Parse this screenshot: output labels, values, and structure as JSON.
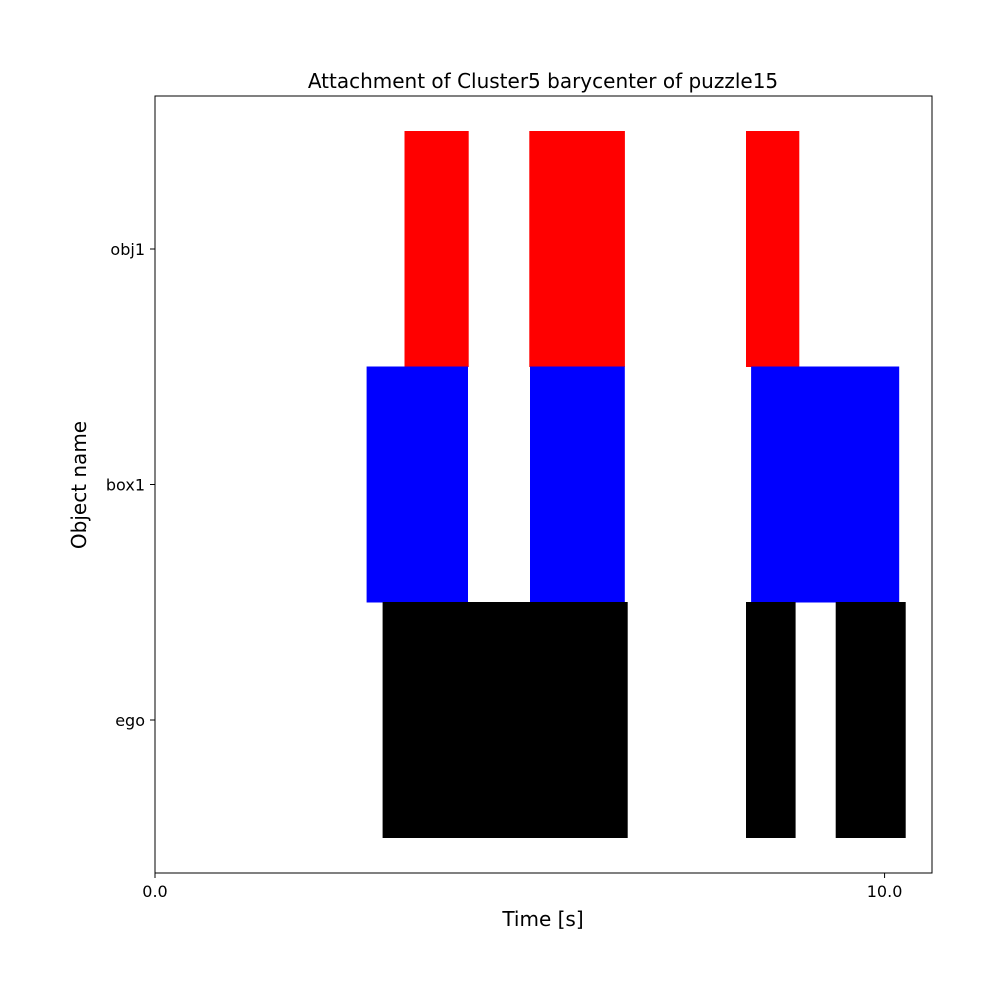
{
  "chart_data": {
    "type": "timeline",
    "title": "Attachment of Cluster5 barycenter of puzzle15",
    "xlabel": "Time [s]",
    "ylabel": "Object name",
    "xlim": [
      0,
      10.65
    ],
    "x_ticks": [
      "0.0",
      "10.0"
    ],
    "x_tick_values": [
      0,
      10
    ],
    "categories": [
      "obj1",
      "box1",
      "ego"
    ],
    "grid": false,
    "legend": "none",
    "series": [
      {
        "category": "obj1",
        "color": "#ff0000",
        "segments": [
          [
            3.42,
            4.3
          ],
          [
            5.13,
            6.44
          ],
          [
            8.1,
            8.83
          ]
        ]
      },
      {
        "category": "box1",
        "color": "#0000ff",
        "segments": [
          [
            2.9,
            4.29
          ],
          [
            5.14,
            6.44
          ],
          [
            8.17,
            10.2
          ]
        ]
      },
      {
        "category": "ego",
        "color": "#000000",
        "segments": [
          [
            3.12,
            6.48
          ],
          [
            8.1,
            8.78
          ],
          [
            9.33,
            10.29
          ]
        ]
      }
    ]
  }
}
